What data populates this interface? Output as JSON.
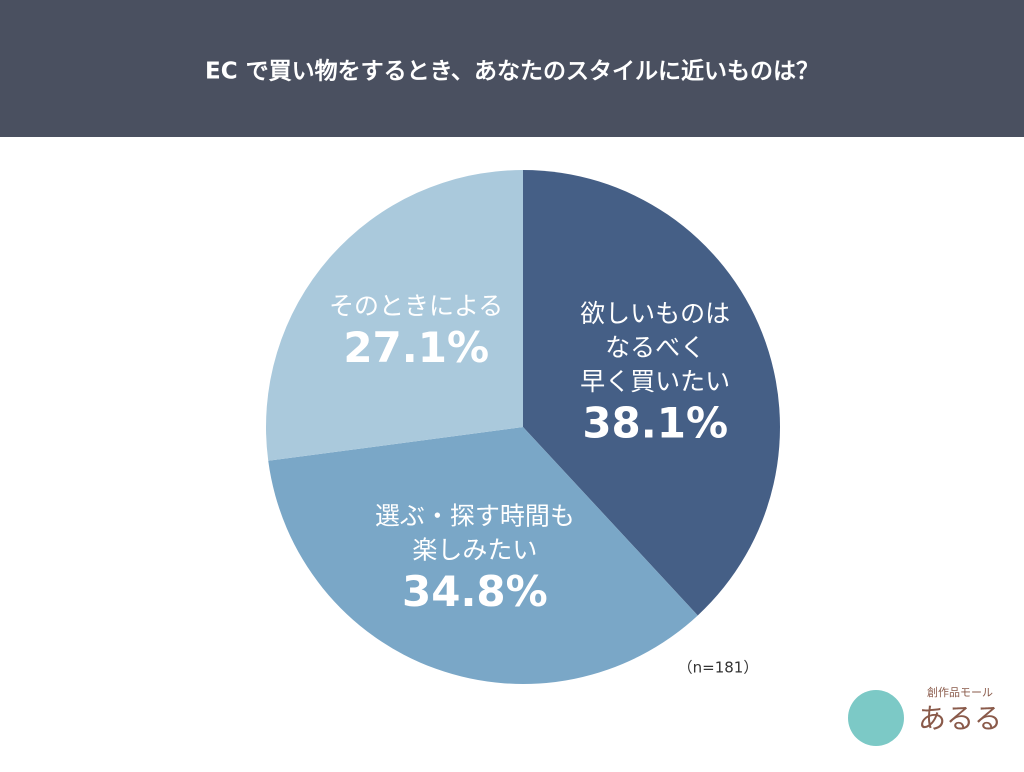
{
  "chart_data": {
    "type": "pie",
    "title": "EC で買い物をするとき、あなたのスタイルに近いものは？",
    "categories": [
      [
        "欲しいものは",
        "なるべく",
        "早く買いたい"
      ],
      [
        "選ぶ・探す時間も",
        "楽しみたい"
      ],
      [
        "そのときによる"
      ]
    ],
    "values": [
      38.1,
      34.8,
      27.1
    ],
    "value_labels": [
      "38.1%",
      "34.8%",
      "27.1%"
    ],
    "colors": [
      "#455f86",
      "#7aa7c7",
      "#aac9dc"
    ],
    "annotation": "（n=181）"
  },
  "logo": {
    "tagline": "創作品モール",
    "name": "あるる"
  }
}
